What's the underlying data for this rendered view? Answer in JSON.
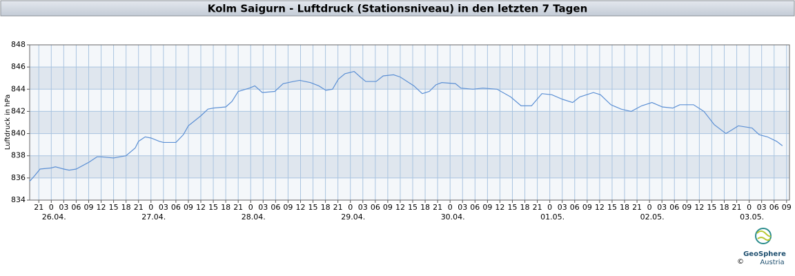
{
  "chart_data": {
    "type": "line",
    "title": "Kolm Saigurn - Luftdruck (Stationsniveau) in den letzten 7 Tagen",
    "y_label": "Luftdruck in hPa",
    "color": "#5b8fd4",
    "grid": true,
    "xlim": [
      -5.2,
      177.7
    ],
    "ylim": [
      834,
      848
    ],
    "yticks": [
      834,
      836,
      838,
      840,
      842,
      844,
      846,
      848
    ],
    "xticks": [
      {
        "value": -3,
        "label": "21"
      },
      0,
      {
        "value": 3,
        "label": "03"
      },
      {
        "value": 6,
        "label": "06"
      },
      {
        "value": 9,
        "label": "09"
      },
      {
        "value": 12,
        "label": "12"
      },
      {
        "value": 15,
        "label": "15"
      },
      {
        "value": 18,
        "label": "18"
      },
      {
        "value": 21,
        "label": "21"
      },
      {
        "value": 24,
        "label": "0"
      },
      {
        "value": 27,
        "label": "03"
      },
      {
        "value": 30,
        "label": "06"
      },
      {
        "value": 33,
        "label": "09"
      },
      {
        "value": 36,
        "label": "12"
      },
      {
        "value": 39,
        "label": "15"
      },
      {
        "value": 42,
        "label": "18"
      },
      {
        "value": 45,
        "label": "21"
      },
      {
        "value": 48,
        "label": "0"
      },
      {
        "value": 51,
        "label": "03"
      },
      {
        "value": 54,
        "label": "06"
      },
      {
        "value": 57,
        "label": "09"
      },
      {
        "value": 60,
        "label": "12"
      },
      {
        "value": 63,
        "label": "15"
      },
      {
        "value": 66,
        "label": "18"
      },
      {
        "value": 69,
        "label": "21"
      },
      {
        "value": 72,
        "label": "0"
      },
      {
        "value": 75,
        "label": "03"
      },
      {
        "value": 78,
        "label": "06"
      },
      {
        "value": 81,
        "label": "09"
      },
      {
        "value": 84,
        "label": "12"
      },
      {
        "value": 87,
        "label": "15"
      },
      {
        "value": 90,
        "label": "18"
      },
      {
        "value": 93,
        "label": "21"
      },
      {
        "value": 96,
        "label": "0"
      },
      {
        "value": 99,
        "label": "03"
      },
      {
        "value": 102,
        "label": "06"
      },
      {
        "value": 105,
        "label": "09"
      },
      {
        "value": 108,
        "label": "12"
      },
      {
        "value": 111,
        "label": "15"
      },
      {
        "value": 114,
        "label": "18"
      },
      {
        "value": 117,
        "label": "21"
      },
      {
        "value": 120,
        "label": "0"
      },
      {
        "value": 123,
        "label": "03"
      },
      {
        "value": 126,
        "label": "06"
      },
      {
        "value": 129,
        "label": "09"
      },
      {
        "value": 132,
        "label": "12"
      },
      {
        "value": 135,
        "label": "15"
      },
      {
        "value": 138,
        "label": "18"
      },
      {
        "value": 141,
        "label": "21"
      },
      {
        "value": 144,
        "label": "0"
      },
      {
        "value": 147,
        "label": "03"
      },
      {
        "value": 150,
        "label": "06"
      },
      {
        "value": 153,
        "label": "09"
      },
      {
        "value": 156,
        "label": "12"
      },
      {
        "value": 159,
        "label": "15"
      },
      {
        "value": 162,
        "label": "18"
      },
      {
        "value": 165,
        "label": "21"
      },
      {
        "value": 168,
        "label": "0"
      },
      {
        "value": 171,
        "label": "03"
      },
      {
        "value": 174,
        "label": "06"
      },
      {
        "value": 177,
        "label": "09"
      }
    ],
    "date_labels": [
      {
        "value": 0,
        "label": "26.04."
      },
      {
        "value": 24,
        "label": "27.04."
      },
      {
        "value": 48,
        "label": "28.04."
      },
      {
        "value": 72,
        "label": "29.04."
      },
      {
        "value": 96,
        "label": "30.04."
      },
      {
        "value": 120,
        "label": "01.05."
      },
      {
        "value": 144,
        "label": "02.05."
      },
      {
        "value": 168,
        "label": "03.05."
      }
    ],
    "x": [
      -5.2,
      -4,
      -2.7,
      0,
      1,
      3,
      4.3,
      6,
      9,
      11,
      12,
      15,
      18,
      20.2,
      21,
      22.6,
      24,
      26,
      27,
      30,
      31.8,
      33,
      36,
      37.7,
      39,
      42,
      43.5,
      45,
      47.7,
      49,
      50.8,
      53.8,
      55.8,
      58.3,
      59.8,
      62.4,
      64.4,
      66.1,
      67.7,
      69.1,
      70.7,
      72.9,
      74.4,
      75.7,
      78.2,
      79.9,
      82.4,
      84.0,
      87.3,
      89.3,
      91.0,
      92.6,
      94.0,
      97.3,
      98.6,
      101.5,
      103.9,
      107.3,
      110.6,
      113.1,
      115.6,
      118.1,
      120.5,
      123.0,
      125.5,
      127.2,
      130.5,
      132.2,
      134.7,
      137.2,
      139.6,
      142.1,
      144.6,
      147.1,
      149.6,
      151.3,
      154.6,
      157.1,
      159.6,
      162.4,
      163.7,
      165.4,
      168.7,
      170.4,
      172.4,
      174.6,
      176.0
    ],
    "values": [
      835.7,
      836.2,
      836.8,
      836.9,
      837.0,
      836.8,
      836.7,
      836.8,
      837.4,
      837.9,
      837.9,
      837.8,
      838.0,
      838.7,
      839.3,
      839.7,
      839.6,
      839.3,
      839.2,
      839.2,
      839.9,
      840.7,
      841.6,
      842.2,
      842.3,
      842.4,
      842.9,
      843.8,
      844.1,
      844.3,
      843.7,
      843.8,
      844.5,
      844.7,
      844.8,
      844.6,
      844.3,
      843.9,
      844.0,
      844.9,
      845.4,
      845.6,
      845.1,
      844.7,
      844.7,
      845.2,
      845.3,
      845.1,
      844.3,
      843.6,
      843.8,
      844.4,
      844.6,
      844.5,
      844.1,
      844.0,
      844.1,
      844.0,
      843.3,
      842.5,
      842.5,
      843.6,
      843.5,
      843.1,
      842.8,
      843.3,
      843.7,
      843.5,
      842.6,
      842.2,
      842.0,
      842.5,
      842.8,
      842.4,
      842.3,
      842.6,
      842.6,
      842.0,
      840.8,
      840.0,
      840.3,
      840.7,
      840.5,
      839.9,
      839.7,
      839.3,
      838.9
    ]
  },
  "logo": {
    "name": "GeoSphere",
    "subname": "Austria",
    "copyright": "©"
  }
}
